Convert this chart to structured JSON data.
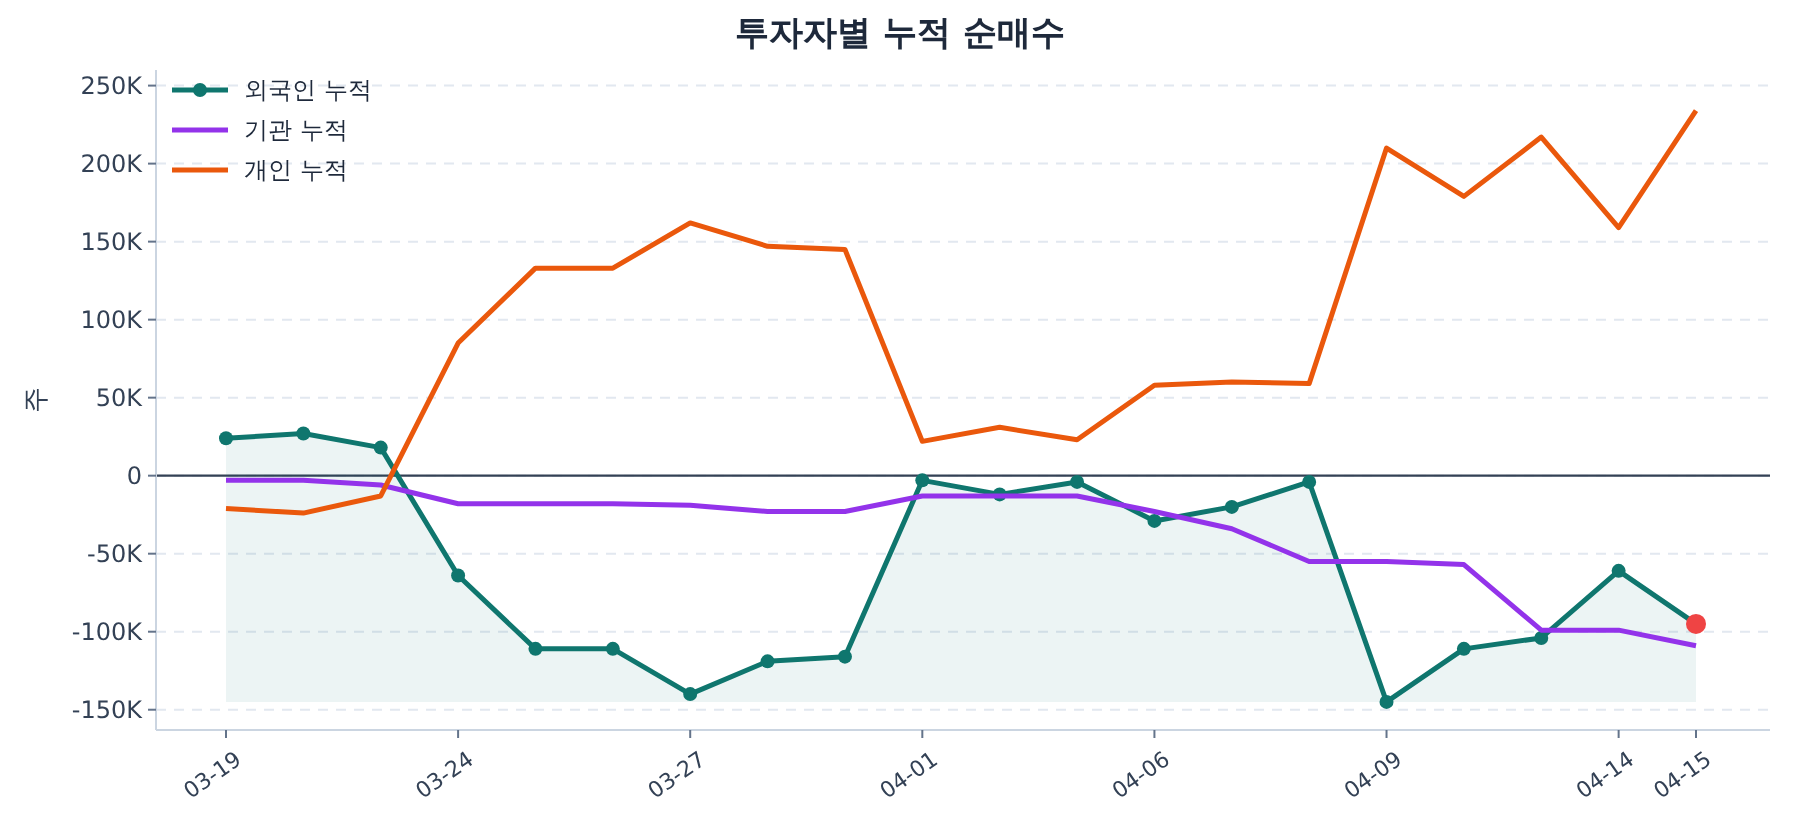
{
  "chart_data": {
    "type": "line",
    "title": "투자자별 누적 순매수",
    "ylabel": "주",
    "categories": [
      "03-19",
      null,
      null,
      "03-24",
      null,
      null,
      "03-27",
      null,
      null,
      "04-01",
      null,
      null,
      "04-06",
      null,
      null,
      "04-09",
      null,
      null,
      "04-14",
      "04-15"
    ],
    "series": [
      {
        "name": "외국인 누적",
        "type": "line",
        "color": "#0f766e",
        "marker": "circle",
        "values": [
          24000,
          27000,
          18000,
          -64000,
          -111000,
          -111000,
          -140000,
          -119000,
          -116000,
          -3000,
          -12000,
          -4000,
          -29000,
          -20000,
          -4000,
          -145000,
          -111000,
          -104000,
          -61000,
          -95000
        ]
      },
      {
        "name": "기관 누적",
        "color": "#9333ea",
        "values": [
          -3000,
          -3000,
          -6000,
          -18000,
          -18000,
          -18000,
          -19000,
          -23000,
          -23000,
          -13000,
          -13000,
          -13000,
          -23000,
          -34000,
          -55000,
          -55000,
          -57000,
          -99000,
          -99000,
          -109000
        ]
      },
      {
        "name": "개인 누적",
        "color": "#ea580c",
        "values": [
          -21000,
          -24000,
          -13000,
          85000,
          133000,
          133000,
          162000,
          147000,
          145000,
          22000,
          31000,
          23000,
          58000,
          60000,
          59000,
          210000,
          179000,
          217000,
          159000,
          234000
        ]
      },
      {
        "type": "scatter",
        "color": "#ef4444",
        "values": [
          null,
          null,
          null,
          null,
          null,
          null,
          null,
          null,
          null,
          null,
          null,
          null,
          null,
          null,
          null,
          null,
          null,
          null,
          null,
          -95000
        ]
      }
    ],
    "ylim": [
      -163000,
      260000
    ],
    "yticks": [
      {
        "value": -150000,
        "label": "-150K"
      },
      {
        "value": -100000,
        "label": "-100K"
      },
      {
        "value": -50000,
        "label": "-50K"
      },
      0,
      {
        "value": 50000,
        "label": "50K"
      },
      {
        "value": 100000,
        "label": "100K"
      },
      {
        "value": 150000,
        "label": "150K"
      },
      {
        "value": 200000,
        "label": "200K"
      },
      {
        "value": 250000,
        "label": "250K"
      }
    ],
    "grid": "y",
    "legend": "top left",
    "ref_lines": [
      {
        "axis": "y",
        "value": 0,
        "color": "#334155"
      }
    ]
  }
}
